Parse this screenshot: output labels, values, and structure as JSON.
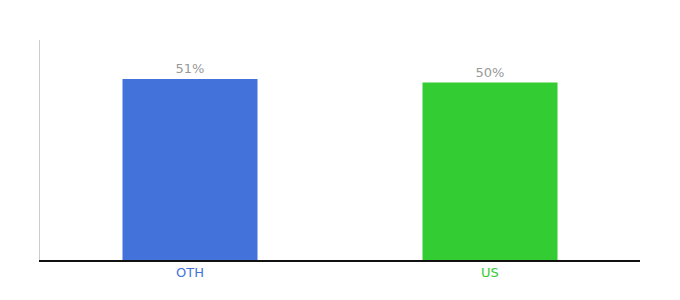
{
  "chart_data": {
    "type": "bar",
    "categories": [
      "OTH",
      "US"
    ],
    "values": [
      51,
      50
    ],
    "value_labels": [
      "51%",
      "50%"
    ],
    "colors": [
      "#4472db",
      "#33cc33"
    ],
    "data_labels": true,
    "ylim": [
      0,
      62
    ],
    "yticks": [],
    "grid": false,
    "tick_labels": "x"
  }
}
